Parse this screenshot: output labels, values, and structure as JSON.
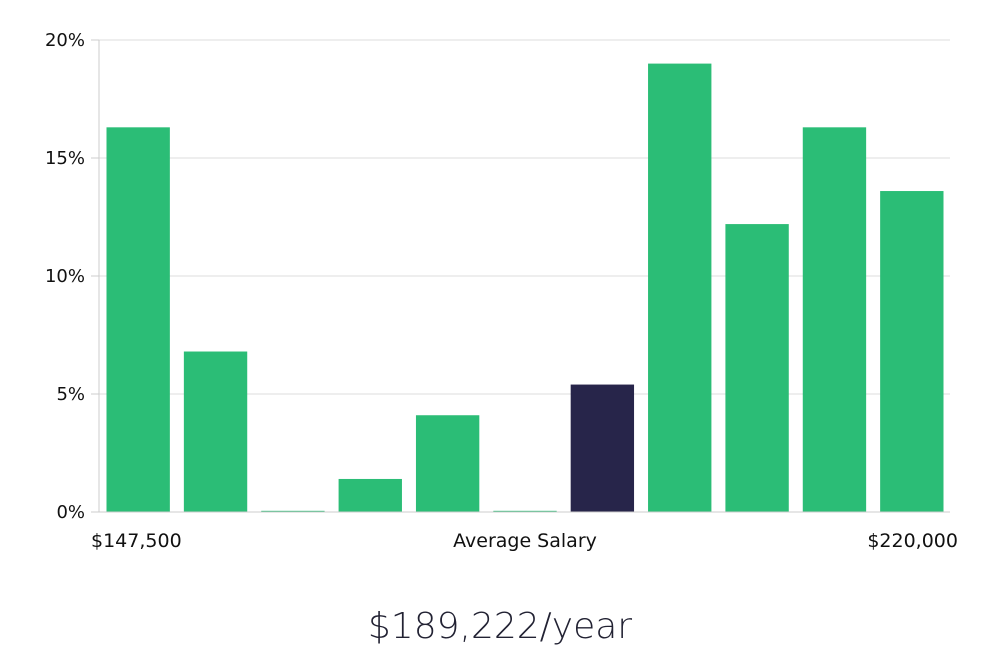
{
  "chart_data": {
    "type": "bar",
    "title": "",
    "xlabel": "Average Salary",
    "ylabel": "",
    "ylim": [
      0,
      20
    ],
    "y_ticks": [
      0,
      5,
      10,
      15,
      20
    ],
    "y_tick_labels": [
      "0%",
      "5%",
      "10%",
      "15%",
      "20%"
    ],
    "x_min_label": "$147,500",
    "x_max_label": "$220,000",
    "values": [
      16.3,
      6.8,
      0.05,
      1.4,
      4.1,
      0.05,
      5.4,
      19.0,
      12.2,
      16.3,
      13.6
    ],
    "highlight_index": 6,
    "grid": true
  },
  "colors": {
    "bar": "#2bbd76",
    "highlight": "#27254a",
    "grid": "#e3e3e3",
    "axis": "#cccccc"
  },
  "summary": {
    "salary": "$189,222/year"
  }
}
